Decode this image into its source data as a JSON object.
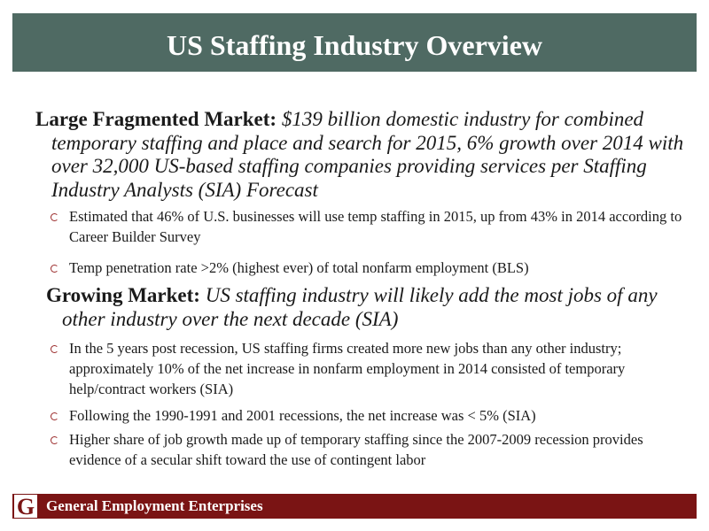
{
  "header": {
    "title": "US Staffing Industry Overview"
  },
  "sections": [
    {
      "heading": "Large Fragmented Market:",
      "text": "$139 billion domestic industry for combined temporary staffing and place and search for 2015, 6% growth over 2014 with over 32,000 US-based staffing companies providing services per Staffing Industry Analysts (SIA) Forecast",
      "bullets": [
        "Estimated that 46%  of U.S. businesses will use temp staffing  in 2015, up from 43% in 2014 according to Career Builder Survey",
        "Temp penetration rate >2% (highest ever) of total nonfarm employment (BLS)"
      ]
    },
    {
      "heading": "Growing Market:",
      "text": "US staffing industry will likely add the most jobs of any other industry over the next decade (SIA)",
      "bullets": [
        "In the 5 years post recession, US staffing firms created more new jobs than any other industry; approximately 10% of the net increase in nonfarm employment in 2014 consisted of  temporary help/contract workers (SIA)",
        "Following the 1990-1991 and 2001 recessions, the net increase was < 5% (SIA)",
        "Higher share of job growth made up of temporary staffing since the 2007-2009 recession provides evidence of a secular shift toward the use of contingent labor"
      ]
    }
  ],
  "footer": {
    "logo": "G",
    "company": "General Employment Enterprises"
  }
}
